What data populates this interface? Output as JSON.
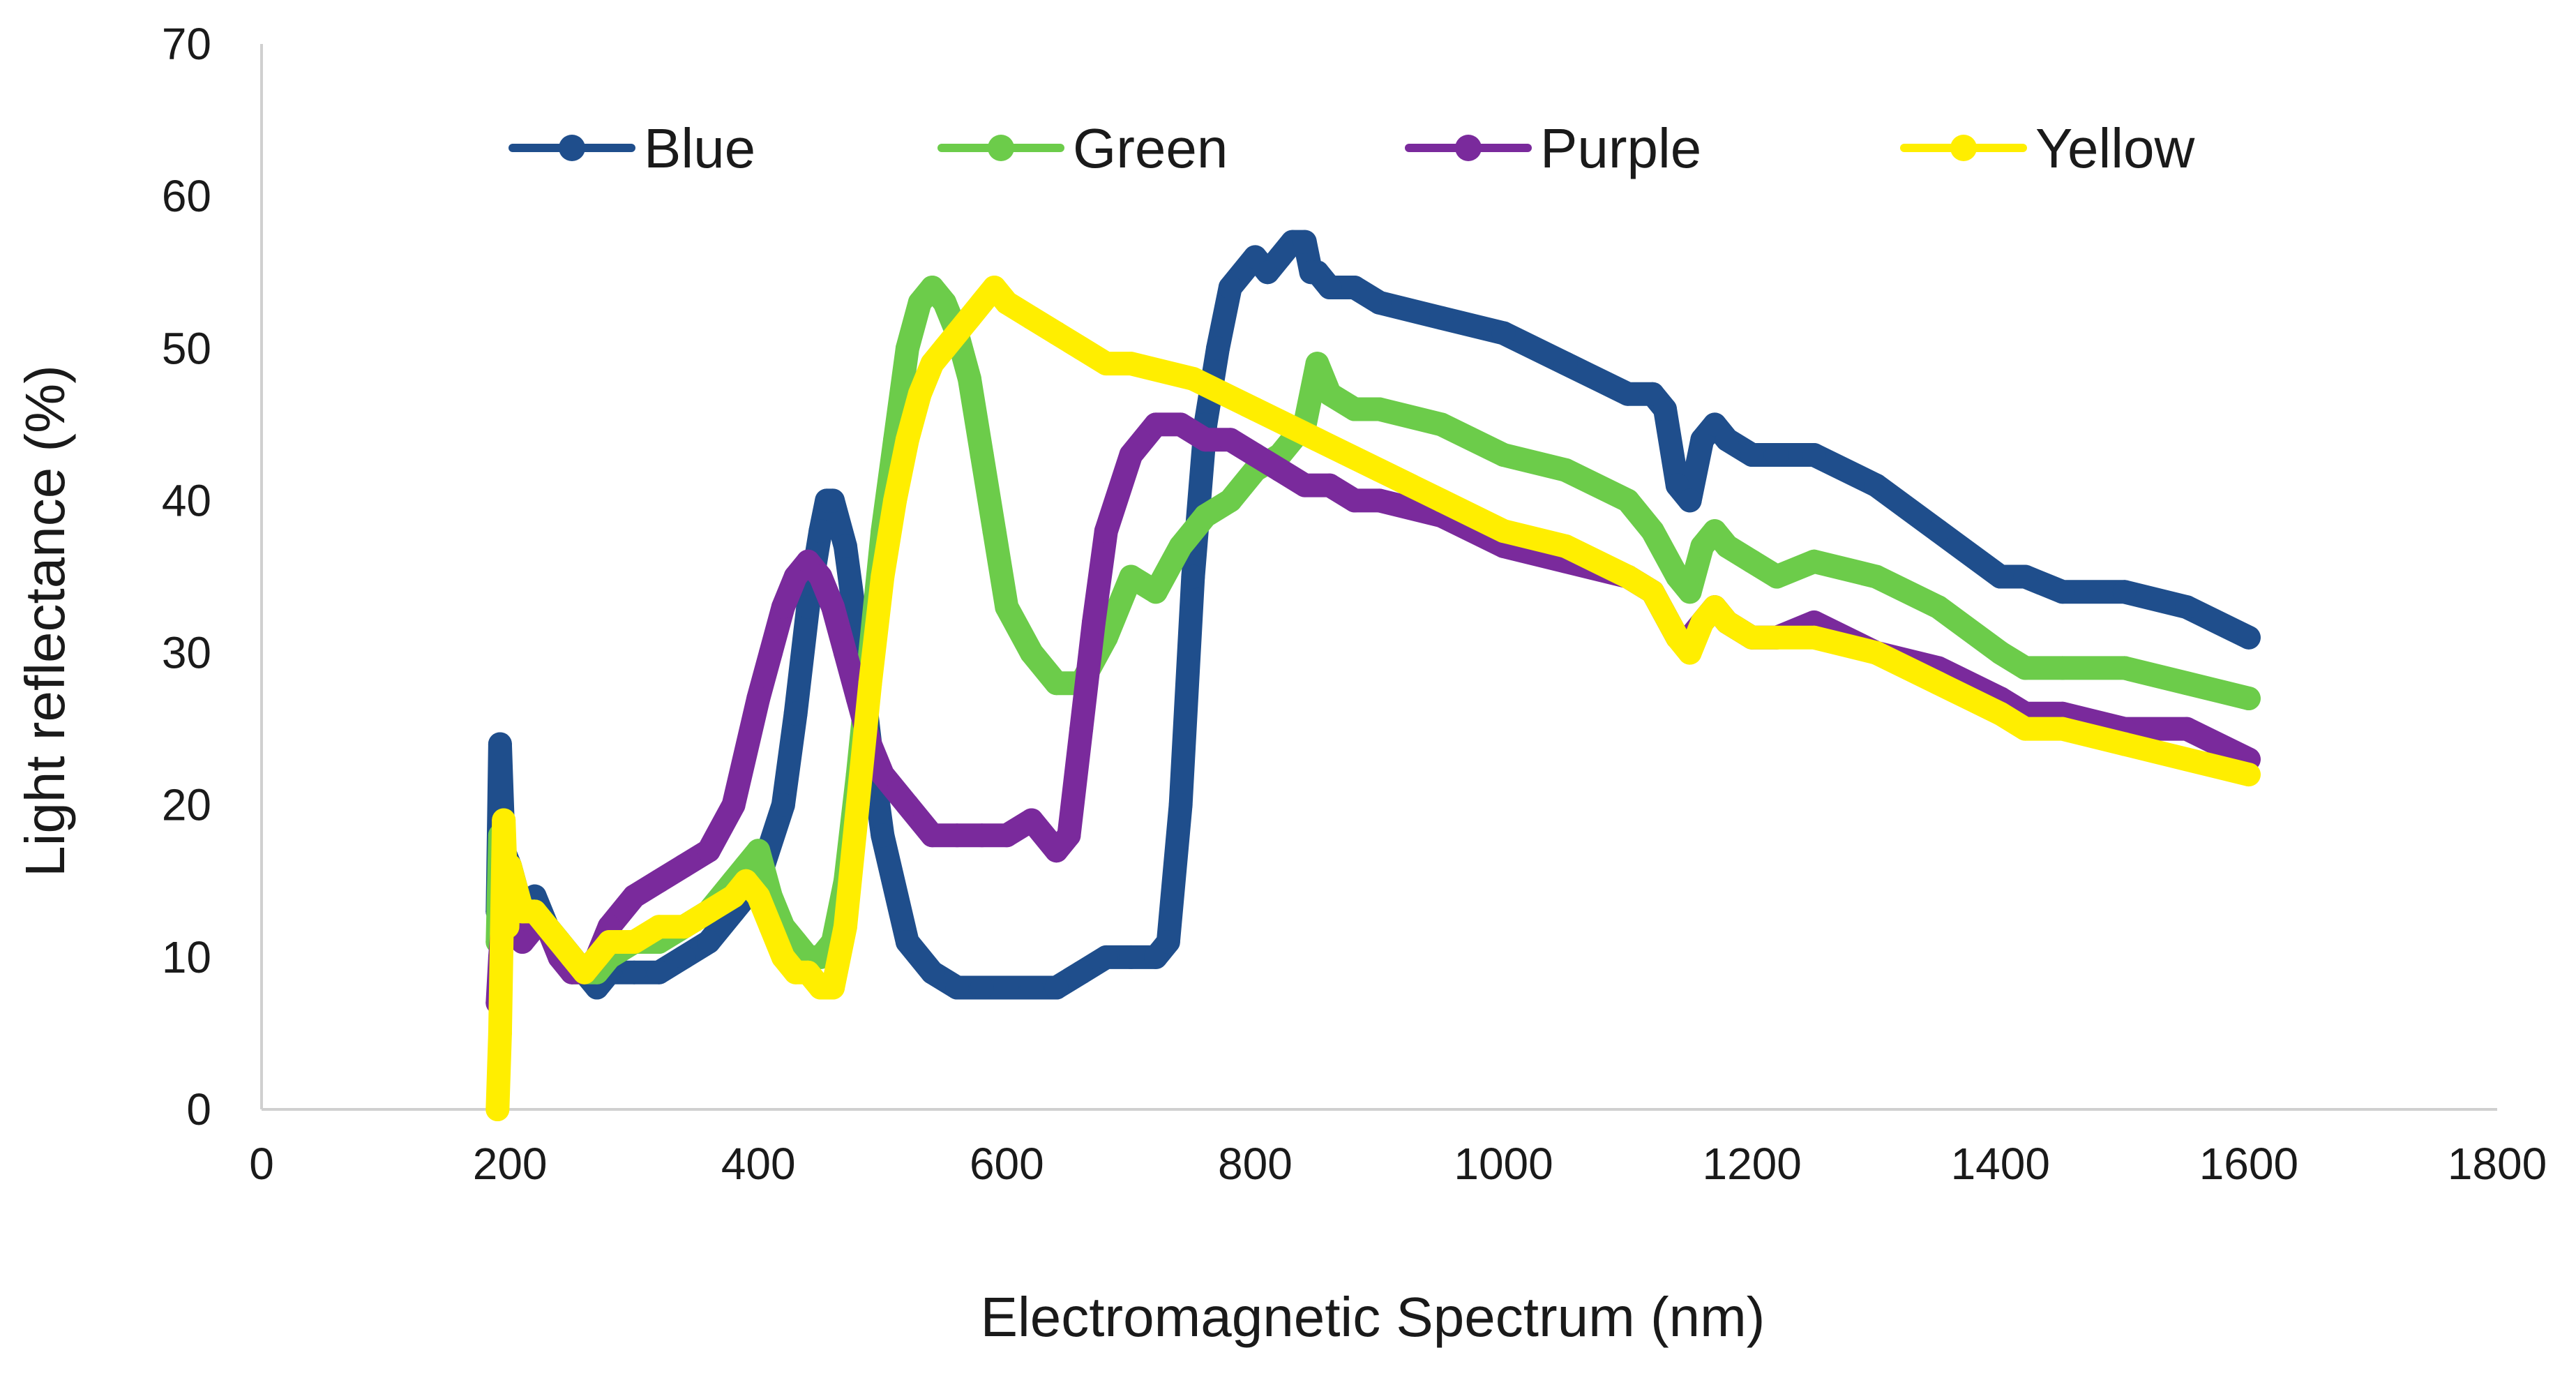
{
  "chart_data": {
    "type": "line",
    "title": "",
    "xlabel": "Electromagnetic Spectrum (nm)",
    "ylabel": "Light reflectance (%)",
    "xlim": [
      0,
      1800
    ],
    "ylim": [
      0,
      70
    ],
    "xticks": [
      0,
      200,
      400,
      600,
      800,
      1000,
      1200,
      1400,
      1600,
      1800
    ],
    "yticks": [
      0,
      10,
      20,
      30,
      40,
      50,
      60,
      70
    ],
    "grid": false,
    "legend_position": "top",
    "series": [
      {
        "name": "Blue",
        "color": "#1f4e8c",
        "x": [
          190,
          192,
          195,
          200,
          210,
          220,
          230,
          240,
          250,
          260,
          270,
          280,
          300,
          320,
          340,
          360,
          380,
          400,
          420,
          430,
          440,
          450,
          455,
          460,
          470,
          480,
          490,
          500,
          520,
          540,
          560,
          580,
          600,
          620,
          640,
          660,
          680,
          700,
          720,
          730,
          740,
          750,
          760,
          770,
          780,
          800,
          810,
          820,
          830,
          840,
          845,
          850,
          860,
          880,
          900,
          950,
          1000,
          1050,
          1100,
          1120,
          1130,
          1140,
          1150,
          1160,
          1170,
          1180,
          1200,
          1220,
          1250,
          1300,
          1350,
          1400,
          1420,
          1450,
          1500,
          1550,
          1600
        ],
        "values": [
          13,
          24,
          17,
          16,
          13,
          14,
          12,
          11,
          10,
          9,
          8,
          9,
          9,
          9,
          10,
          11,
          13,
          15,
          20,
          26,
          33,
          38,
          40,
          40,
          37,
          31,
          24,
          18,
          11,
          9,
          8,
          8,
          8,
          8,
          8,
          9,
          10,
          10,
          10,
          11,
          20,
          35,
          45,
          50,
          54,
          56,
          55,
          56,
          57,
          57,
          55,
          55,
          54,
          54,
          53,
          52,
          51,
          49,
          47,
          47,
          46,
          41,
          40,
          44,
          45,
          44,
          43,
          43,
          43,
          41,
          38,
          35,
          35,
          34,
          34,
          33,
          31
        ]
      },
      {
        "name": "Green",
        "color": "#6ccc4a",
        "x": [
          190,
          192,
          195,
          200,
          210,
          220,
          230,
          240,
          250,
          260,
          270,
          280,
          300,
          320,
          340,
          360,
          380,
          390,
          400,
          410,
          420,
          430,
          440,
          450,
          460,
          470,
          480,
          490,
          500,
          510,
          520,
          530,
          540,
          550,
          560,
          570,
          580,
          590,
          600,
          620,
          640,
          660,
          680,
          700,
          720,
          740,
          760,
          780,
          800,
          820,
          840,
          850,
          860,
          880,
          900,
          950,
          1000,
          1050,
          1100,
          1120,
          1140,
          1150,
          1160,
          1170,
          1180,
          1200,
          1220,
          1250,
          1300,
          1350,
          1400,
          1420,
          1450,
          1500,
          1550,
          1600
        ],
        "values": [
          11,
          18,
          16,
          14,
          13,
          13,
          12,
          11,
          9,
          9,
          9,
          10,
          11,
          11,
          12,
          13,
          15,
          16,
          17,
          14,
          12,
          11,
          10,
          10,
          11,
          15,
          22,
          30,
          38,
          44,
          50,
          53,
          54,
          53,
          51,
          48,
          43,
          38,
          33,
          30,
          28,
          28,
          31,
          35,
          34,
          37,
          39,
          40,
          42,
          43,
          45,
          49,
          47,
          46,
          46,
          45,
          43,
          42,
          40,
          38,
          35,
          34,
          37,
          38,
          37,
          36,
          35,
          36,
          35,
          33,
          30,
          29,
          29,
          29,
          28,
          27
        ]
      },
      {
        "name": "Purple",
        "color": "#7a2a9c",
        "x": [
          190,
          192,
          195,
          200,
          210,
          220,
          230,
          240,
          250,
          260,
          270,
          280,
          300,
          320,
          340,
          360,
          380,
          400,
          410,
          420,
          430,
          440,
          450,
          460,
          470,
          480,
          490,
          500,
          520,
          540,
          560,
          580,
          600,
          620,
          640,
          650,
          660,
          670,
          680,
          700,
          720,
          740,
          760,
          780,
          800,
          820,
          840,
          860,
          880,
          900,
          950,
          1000,
          1050,
          1100,
          1120,
          1140,
          1150,
          1160,
          1170,
          1180,
          1200,
          1220,
          1250,
          1300,
          1350,
          1400,
          1420,
          1450,
          1500,
          1550,
          1600
        ],
        "values": [
          7,
          10,
          13,
          12,
          11,
          12,
          12,
          10,
          9,
          9,
          10,
          12,
          14,
          15,
          16,
          17,
          20,
          27,
          30,
          33,
          35,
          36,
          35,
          33,
          30,
          27,
          24,
          22,
          20,
          18,
          18,
          18,
          18,
          19,
          17,
          18,
          25,
          32,
          38,
          43,
          45,
          45,
          44,
          44,
          43,
          42,
          41,
          41,
          40,
          40,
          39,
          37,
          36,
          35,
          34,
          31,
          31,
          32,
          33,
          32,
          31,
          31,
          32,
          30,
          29,
          27,
          26,
          26,
          25,
          25,
          23
        ]
      },
      {
        "name": "Yellow",
        "color": "#ffee00",
        "x": [
          190,
          192,
          195,
          198,
          200,
          210,
          220,
          230,
          240,
          250,
          260,
          270,
          280,
          300,
          320,
          340,
          360,
          380,
          390,
          400,
          410,
          420,
          430,
          440,
          450,
          460,
          470,
          480,
          490,
          500,
          510,
          520,
          530,
          540,
          550,
          560,
          570,
          580,
          590,
          600,
          620,
          640,
          660,
          680,
          700,
          750,
          800,
          850,
          900,
          950,
          1000,
          1050,
          1100,
          1120,
          1140,
          1150,
          1160,
          1170,
          1180,
          1200,
          1220,
          1250,
          1300,
          1350,
          1400,
          1420,
          1450,
          1500,
          1550,
          1600
        ],
        "values": [
          0,
          5,
          19,
          12,
          16,
          13,
          13,
          12,
          11,
          10,
          9,
          10,
          11,
          11,
          12,
          12,
          13,
          14,
          15,
          14,
          12,
          10,
          9,
          9,
          8,
          8,
          12,
          20,
          28,
          35,
          40,
          44,
          47,
          49,
          50,
          51,
          52,
          53,
          54,
          53,
          52,
          51,
          50,
          49,
          49,
          48,
          46,
          44,
          42,
          40,
          38,
          37,
          35,
          34,
          31,
          30,
          32,
          33,
          32,
          31,
          31,
          31,
          30,
          28,
          26,
          25,
          25,
          24,
          23,
          22
        ]
      }
    ]
  }
}
